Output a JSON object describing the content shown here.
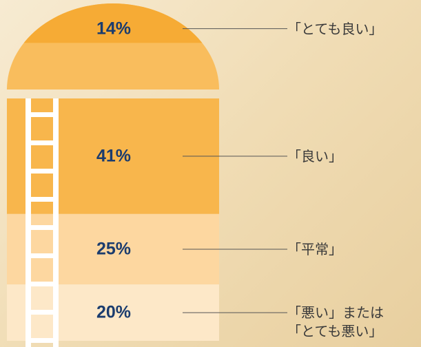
{
  "chart_data": {
    "type": "silo",
    "categories": [
      "「とても良い」",
      "「良い」",
      "「平常」",
      "「悪い」または\n「とても悪い」"
    ],
    "values": [
      14,
      41,
      25,
      20
    ],
    "value_labels": [
      "14%",
      "41%",
      "25%",
      "20%"
    ],
    "colors": [
      "#f6ab35",
      "#f8b64c",
      "#fdd7a0",
      "#fde8c8"
    ]
  }
}
